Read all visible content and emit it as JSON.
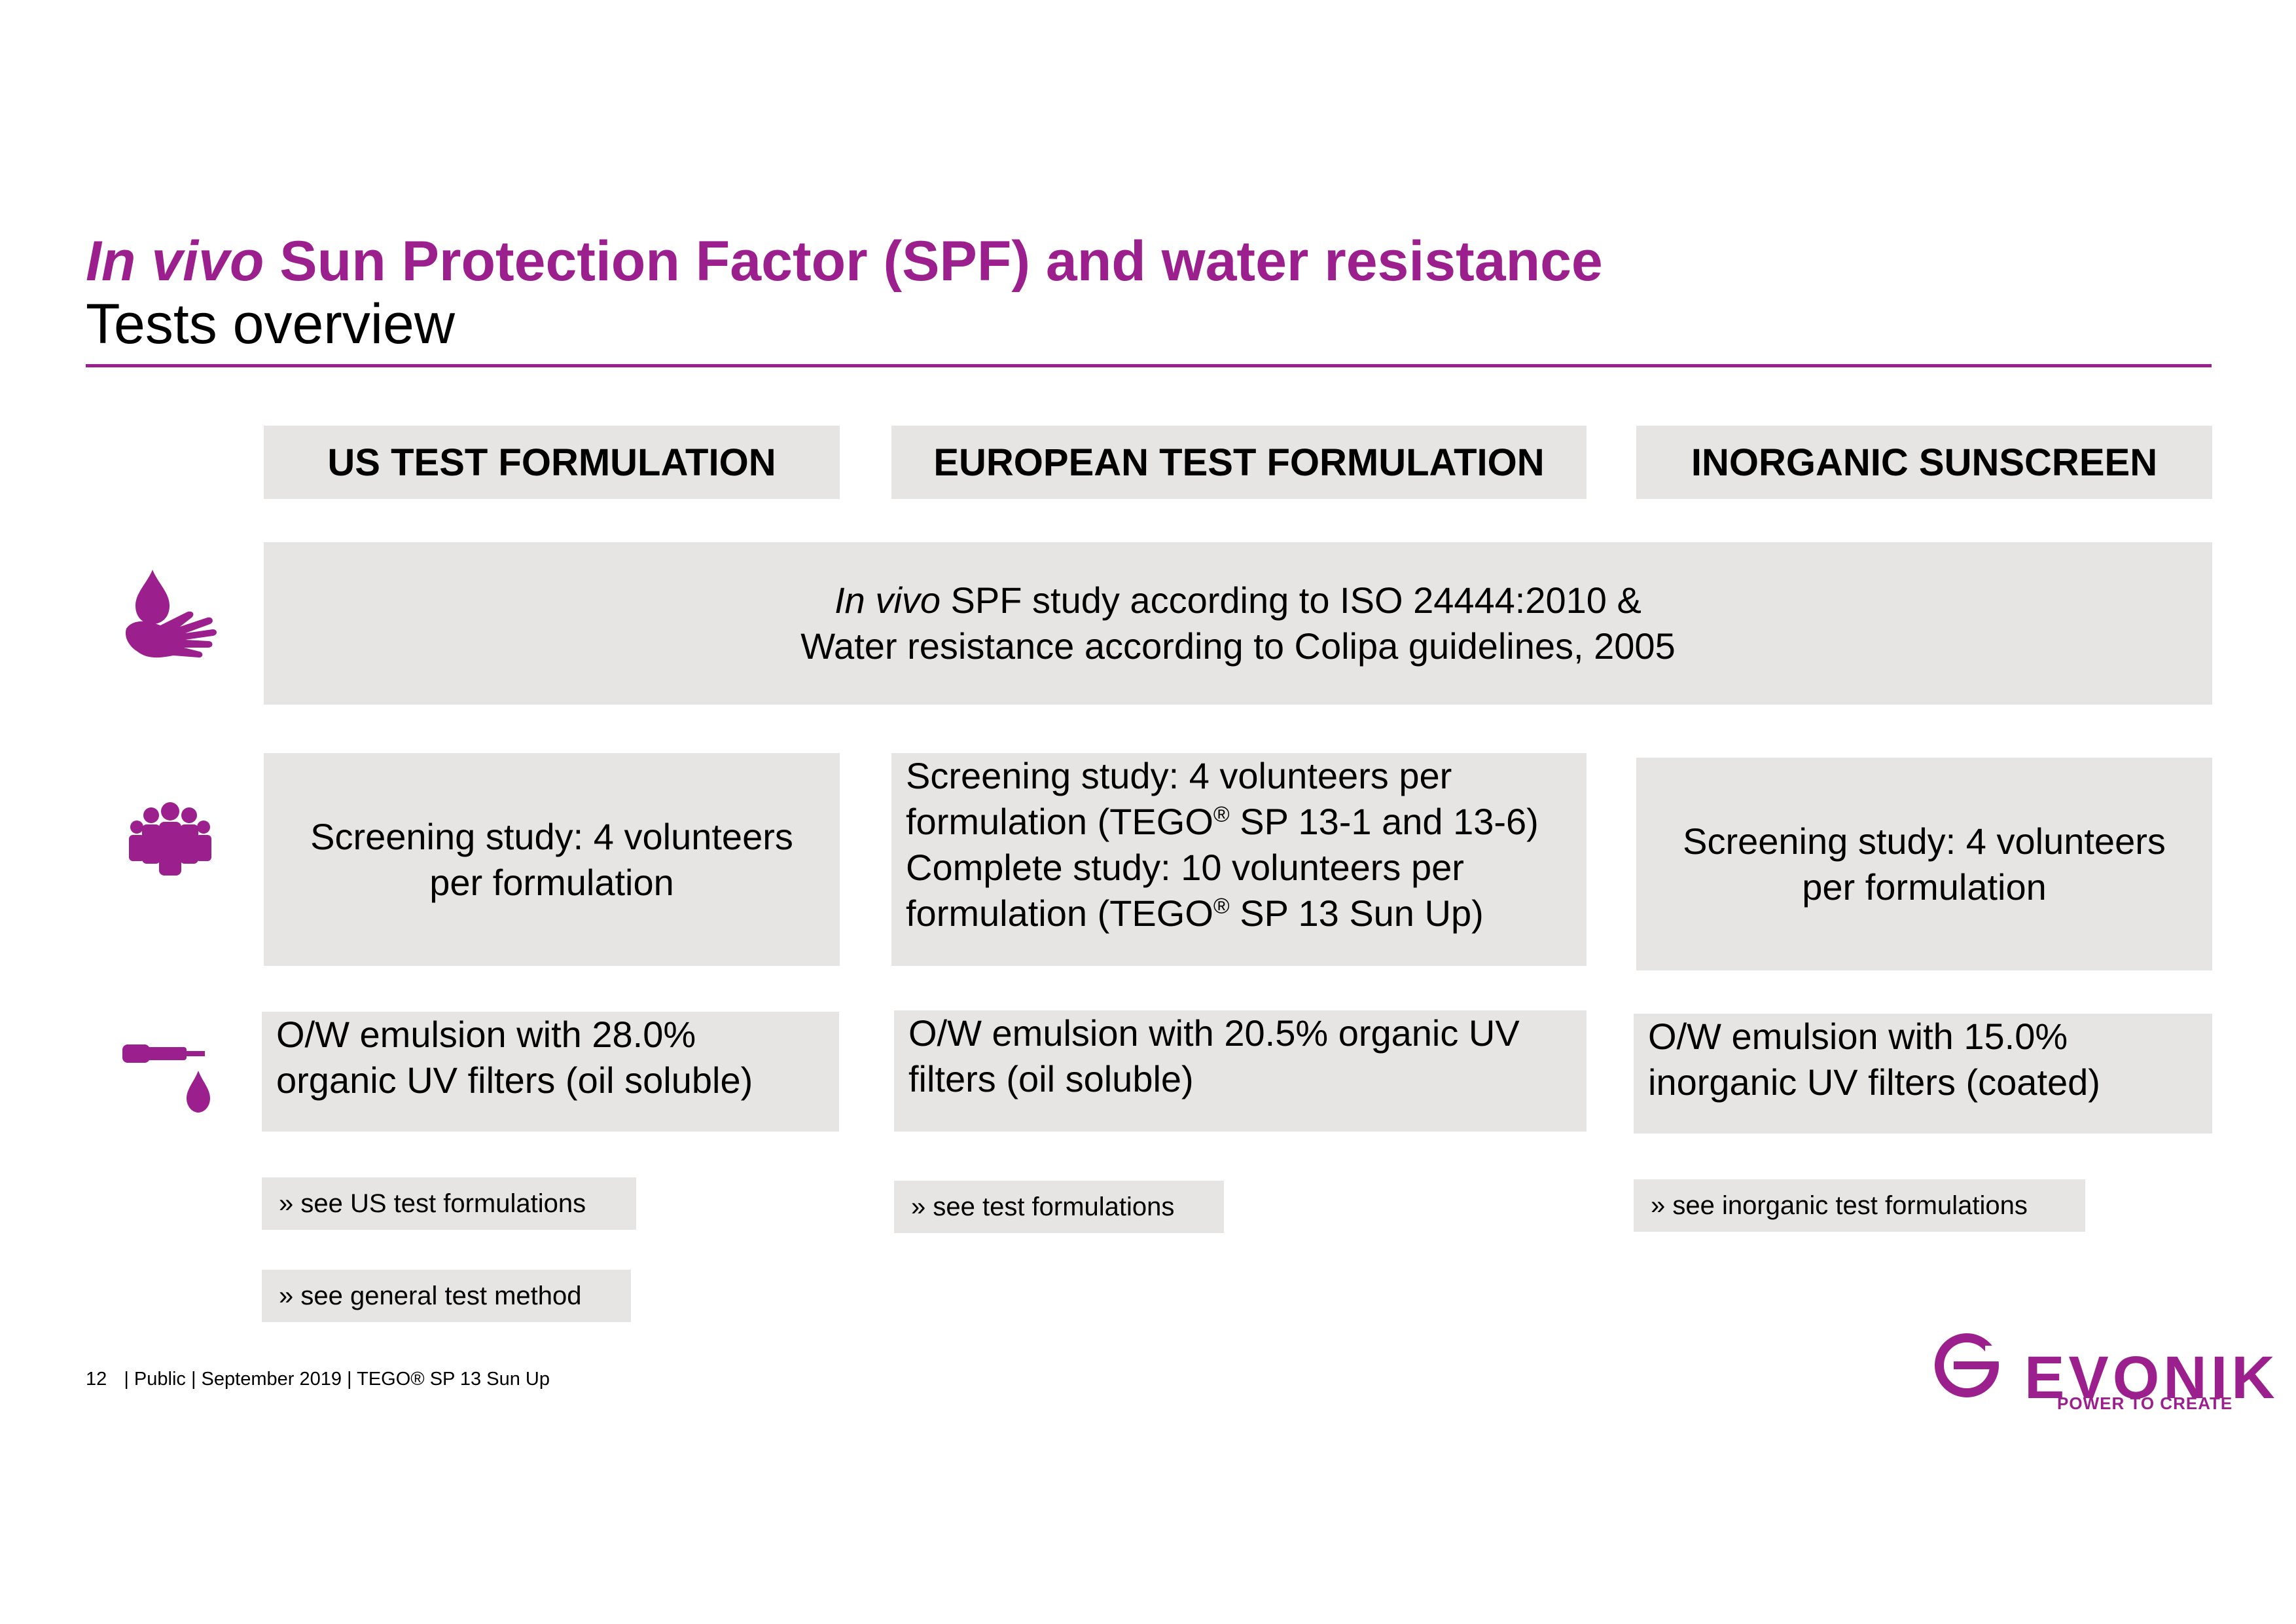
{
  "title": {
    "italic": "In vivo",
    "rest": " Sun Protection Factor (SPF) and water resistance"
  },
  "subtitle": "Tests overview",
  "columns": [
    {
      "header": "US TEST FORMULATION"
    },
    {
      "header": "EUROPEAN TEST FORMULATION"
    },
    {
      "header": "INORGANIC SUNSCREEN"
    }
  ],
  "spf_study": {
    "italic": "In vivo",
    "line1_rest": " SPF study according to ISO 24444:2010 &",
    "line2": "Water resistance according to Colipa guidelines, 2005"
  },
  "volunteers": {
    "us_line1": "Screening study: 4 volunteers",
    "us_line2": "per formulation",
    "eu_line1": "Screening study: 4 volunteers per",
    "eu_line2a": "formulation (TEGO",
    "eu_line2b": " SP 13-1 and 13-6)",
    "eu_line3": "Complete study: 10 volunteers per",
    "eu_line4a": "formulation (TEGO",
    "eu_line4b": " SP 13 Sun Up)",
    "reg": "®",
    "inorg_line1": "Screening study: 4 volunteers",
    "inorg_line2": "per formulation"
  },
  "emulsion": {
    "us_line1": "O/W emulsion with 28.0%",
    "us_line2": "organic UV filters (oil soluble)",
    "eu_line1": "O/W emulsion with 20.5% organic UV",
    "eu_line2": "filters (oil soluble)",
    "inorg_line1": "O/W emulsion with 15.0%",
    "inorg_line2": "inorganic UV filters (coated)"
  },
  "links": {
    "us_formulations": "» see US test formulations",
    "general_method": "» see general test method",
    "eu_formulations": "» see test formulations",
    "inorg_formulations": "» see inorganic test formulations"
  },
  "icons": [
    "water-drop-hand-icon",
    "volunteers-group-icon",
    "dropper-icon"
  ],
  "footer": {
    "page": "12",
    "info": "| Public | September 2019  |  TEGO® SP 13 Sun Up"
  },
  "logo": {
    "name": "EVONIK",
    "claim": "POWER TO CREATE"
  },
  "colors": {
    "accent": "#9b1f8d",
    "box": "#e6e5e4"
  }
}
